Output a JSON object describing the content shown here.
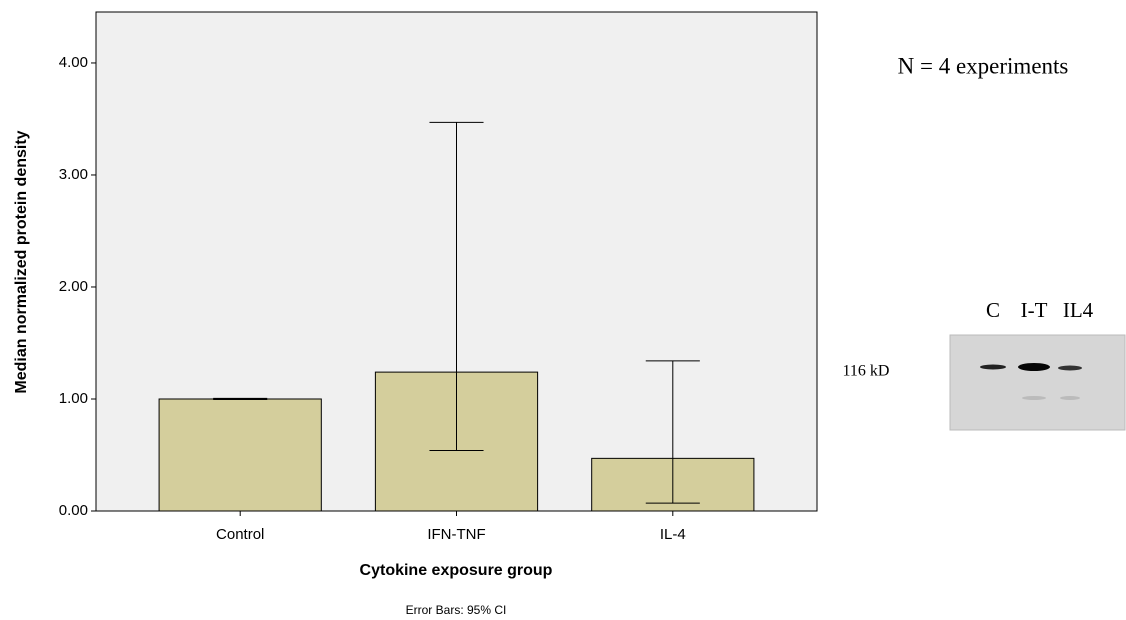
{
  "chart_data": {
    "type": "bar",
    "categories": [
      "Control",
      "IFN-TNF",
      "IL-4"
    ],
    "values": [
      1.0,
      1.24,
      0.47
    ],
    "ci_low": [
      0.995,
      0.54,
      0.07
    ],
    "ci_high": [
      1.005,
      3.47,
      1.34
    ],
    "color": "#d4ce9c",
    "ylim": [
      0,
      4.455
    ],
    "yticks": [
      {
        "value": 0,
        "label": "0.00"
      },
      {
        "value": 1,
        "label": "1.00"
      },
      {
        "value": 2,
        "label": "2.00"
      },
      {
        "value": 3,
        "label": "3.00"
      },
      {
        "value": 4,
        "label": "4.00"
      }
    ],
    "grid": false,
    "ylabel": "Median normalized protein density",
    "xlabel": "Cytokine exposure group",
    "footnote": "Error Bars: 95% CI",
    "annotation": "N = 4 experiments",
    "inset_lanes": [
      "C",
      "I-T",
      "IL4"
    ],
    "inset_marker": "116 kD"
  }
}
